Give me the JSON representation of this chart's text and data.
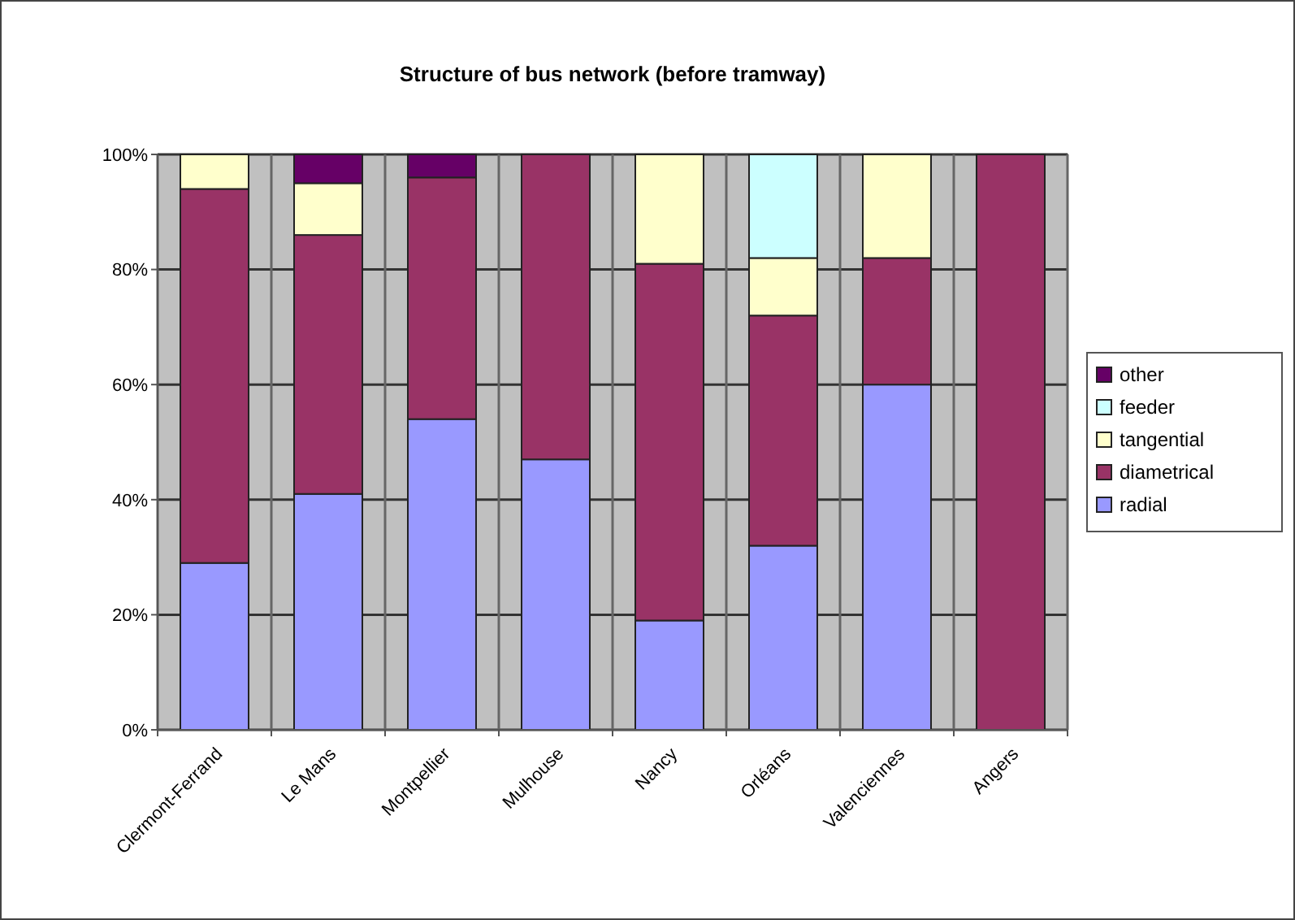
{
  "chart_data": {
    "type": "bar",
    "title": "Structure of bus network (before tramway)",
    "stacked": true,
    "categories": [
      "Clermont-Ferrand",
      "Le Mans",
      "Montpellier",
      "Mulhouse",
      "Nancy",
      "Orléans",
      "Valenciennes",
      "Angers"
    ],
    "series": [
      {
        "name": "radial",
        "color": "#9999ff",
        "values": [
          29,
          41,
          54,
          47,
          19,
          32,
          60,
          0
        ]
      },
      {
        "name": "diametrical",
        "color": "#993366",
        "values": [
          65,
          45,
          42,
          53,
          62,
          40,
          22,
          100
        ]
      },
      {
        "name": "tangential",
        "color": "#ffffcc",
        "values": [
          6,
          9,
          0,
          0,
          19,
          10,
          18,
          0
        ]
      },
      {
        "name": "feeder",
        "color": "#ccffff",
        "values": [
          0,
          0,
          0,
          0,
          0,
          18,
          0,
          0
        ]
      },
      {
        "name": "other",
        "color": "#660066",
        "values": [
          0,
          5,
          4,
          0,
          0,
          0,
          0,
          0
        ]
      }
    ],
    "ylim": [
      0,
      100
    ],
    "yticks": [
      {
        "value": 0,
        "label": "0%"
      },
      {
        "value": 20,
        "label": "20%"
      },
      {
        "value": 40,
        "label": "40%"
      },
      {
        "value": 60,
        "label": "60%"
      },
      {
        "value": 80,
        "label": "80%"
      },
      {
        "value": 100,
        "label": "100%"
      }
    ],
    "grid": true,
    "legend": "right"
  }
}
